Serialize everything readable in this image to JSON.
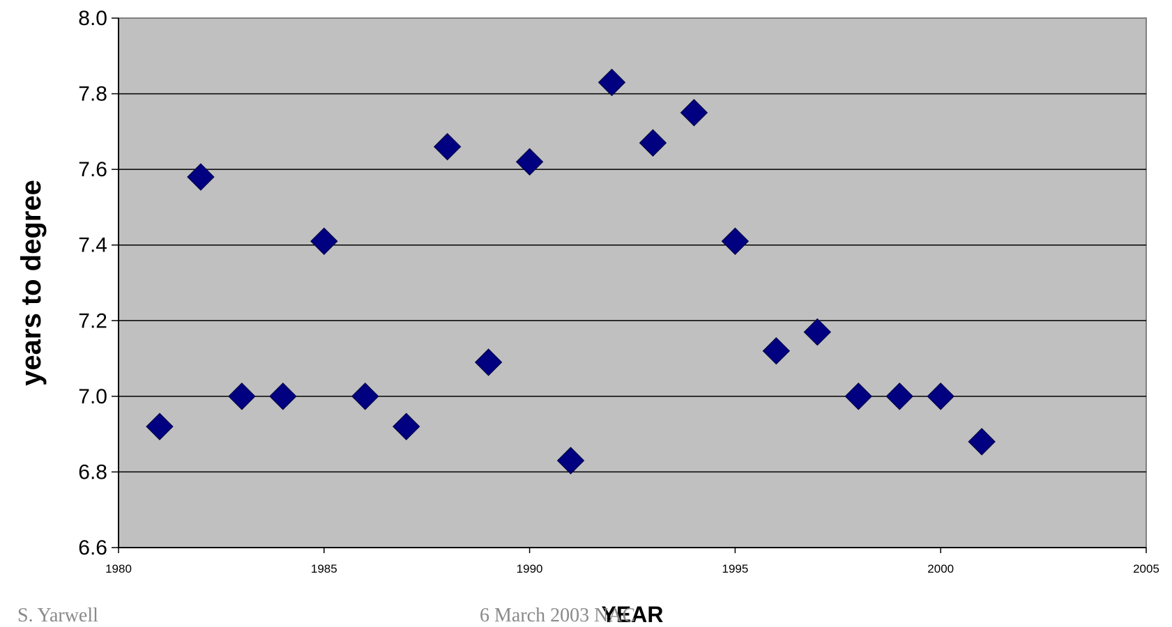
{
  "chart_data": {
    "type": "scatter",
    "title": "",
    "xlabel": "YEAR",
    "ylabel": "years to degree",
    "xlim": [
      1980,
      2005
    ],
    "ylim": [
      6.6,
      8.0
    ],
    "x_ticks": [
      "1980",
      "1985",
      "1990",
      "1995",
      "2000",
      "2005"
    ],
    "y_ticks": [
      "6.6",
      "6.8",
      "7.0",
      "7.2",
      "7.4",
      "7.6",
      "7.8",
      "8.0"
    ],
    "grid": true,
    "legend": "none",
    "colors": {
      "marker": "#000080",
      "plot_background": "#c0c0c0",
      "grid": "#000000"
    },
    "points": [
      {
        "x": 1981,
        "y": 6.92
      },
      {
        "x": 1982,
        "y": 7.58
      },
      {
        "x": 1983,
        "y": 7.0
      },
      {
        "x": 1984,
        "y": 7.0
      },
      {
        "x": 1985,
        "y": 7.41
      },
      {
        "x": 1986,
        "y": 7.0
      },
      {
        "x": 1987,
        "y": 6.92
      },
      {
        "x": 1988,
        "y": 7.66
      },
      {
        "x": 1989,
        "y": 7.09
      },
      {
        "x": 1990,
        "y": 7.62
      },
      {
        "x": 1991,
        "y": 6.83
      },
      {
        "x": 1992,
        "y": 7.83
      },
      {
        "x": 1993,
        "y": 7.67
      },
      {
        "x": 1994,
        "y": 7.75
      },
      {
        "x": 1995,
        "y": 7.41
      },
      {
        "x": 1996,
        "y": 7.12
      },
      {
        "x": 1997,
        "y": 7.17
      },
      {
        "x": 1998,
        "y": 7.0
      },
      {
        "x": 1999,
        "y": 7.0
      },
      {
        "x": 2000,
        "y": 7.0
      },
      {
        "x": 2001,
        "y": 6.88
      }
    ]
  },
  "footer": {
    "left": "S. Yarwell",
    "center": "6 March 2003 NAC"
  }
}
